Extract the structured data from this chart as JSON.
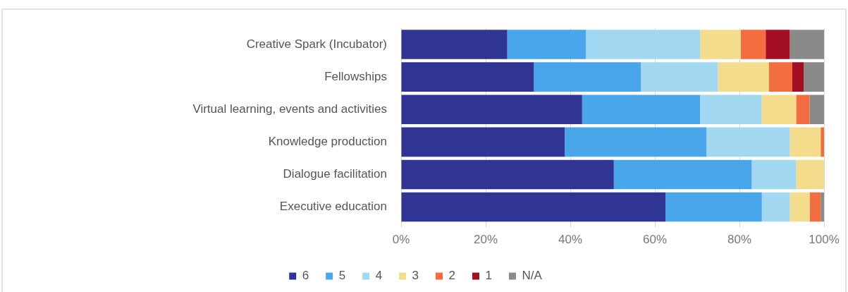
{
  "chart_data": {
    "type": "bar",
    "orientation": "horizontal",
    "stacked": true,
    "categories": [
      "Creative Spark (Incubator)",
      "Fellowships",
      "Virtual learning, events and activities",
      "Knowledge production",
      "Dialogue facilitation",
      "Executive education"
    ],
    "series": [
      {
        "name": "6",
        "color": "#303492",
        "values": [
          25.1,
          31.4,
          42.8,
          38.7,
          50.3,
          62.5
        ]
      },
      {
        "name": "5",
        "color": "#4aa6ea",
        "values": [
          18.6,
          25.3,
          27.9,
          33.5,
          32.6,
          22.8
        ]
      },
      {
        "name": "4",
        "color": "#a2d8f2",
        "values": [
          27.0,
          18.2,
          14.5,
          19.7,
          10.5,
          6.6
        ]
      },
      {
        "name": "3",
        "color": "#f3dc8c",
        "values": [
          9.6,
          12.1,
          8.2,
          7.3,
          6.6,
          4.7
        ]
      },
      {
        "name": "2",
        "color": "#f26d40",
        "values": [
          5.9,
          5.5,
          3.2,
          0.8,
          0,
          2.6
        ]
      },
      {
        "name": "1",
        "color": "#a30e25",
        "values": [
          5.7,
          2.7,
          0,
          0,
          0,
          0
        ]
      },
      {
        "name": "N/A",
        "color": "#8a8a8a",
        "values": [
          8.1,
          4.8,
          3.4,
          0,
          0,
          0.8
        ]
      }
    ],
    "xlim": [
      0,
      100
    ],
    "xticks": [
      {
        "value": 0,
        "label": "0%"
      },
      {
        "value": 20,
        "label": "20%"
      },
      {
        "value": 40,
        "label": "40%"
      },
      {
        "value": 60,
        "label": "60%"
      },
      {
        "value": 80,
        "label": "80%"
      },
      {
        "value": 100,
        "label": "100%"
      }
    ],
    "grid": "x",
    "legend": "bottom"
  }
}
